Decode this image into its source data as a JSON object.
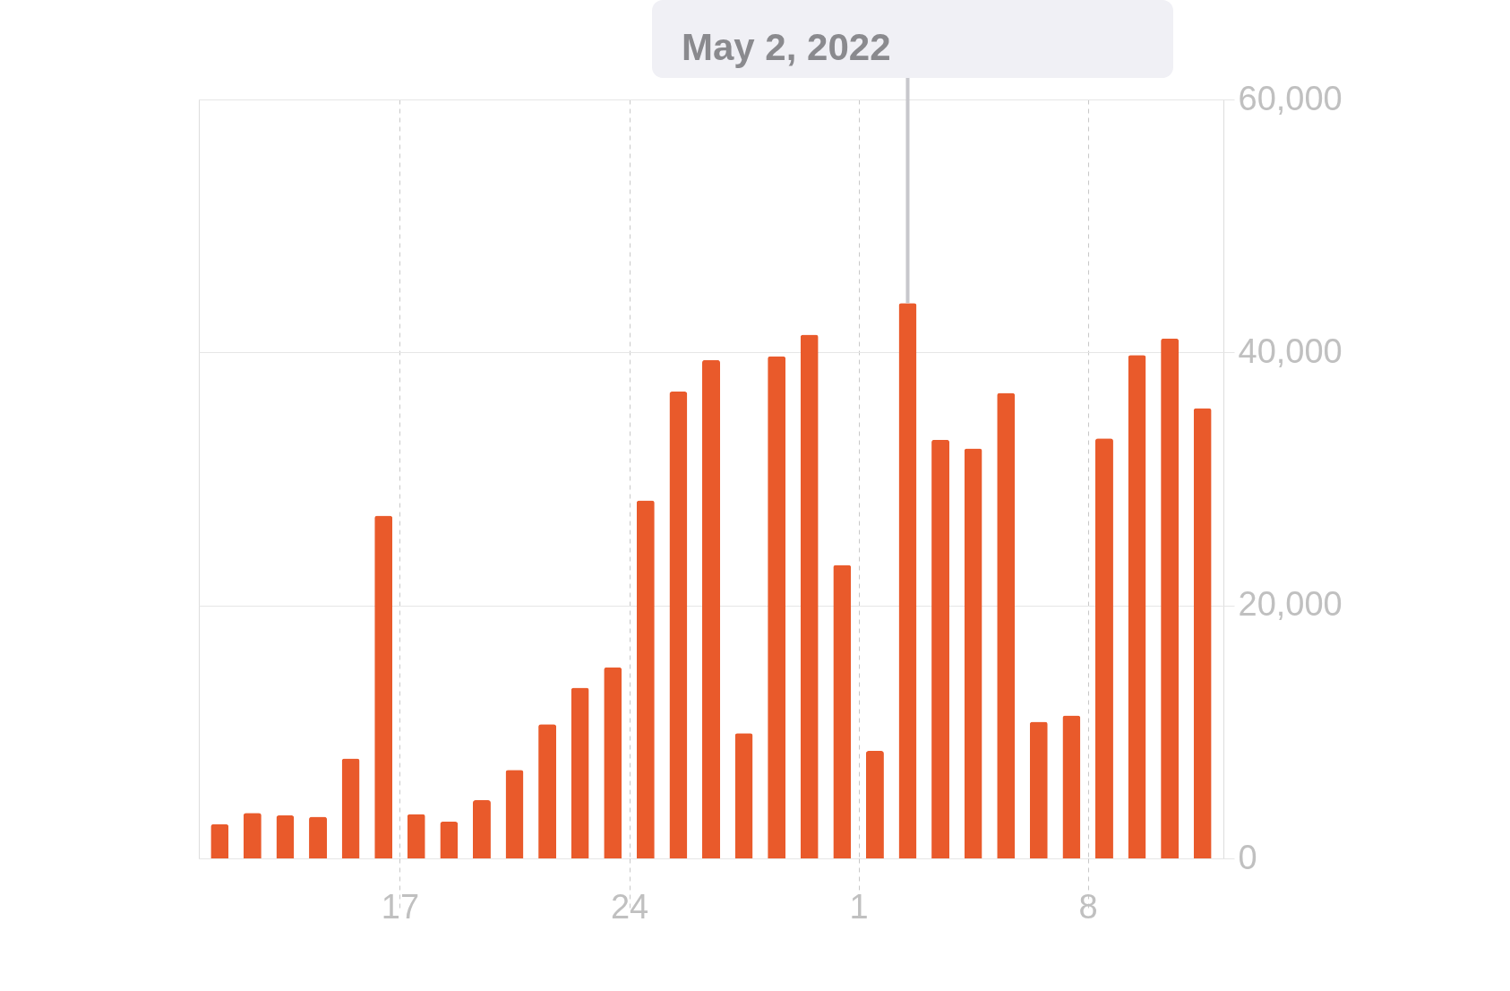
{
  "chart_data": {
    "type": "bar",
    "x": [
      "2022-04-11T12:00",
      "2022-04-12T12:00",
      "2022-04-13T12:00",
      "2022-04-14T12:00",
      "2022-04-15T12:00",
      "2022-04-16T12:00",
      "2022-04-17T12:00",
      "2022-04-18T12:00",
      "2022-04-19T12:00",
      "2022-04-20T12:00",
      "2022-04-21T12:00",
      "2022-04-22T12:00",
      "2022-04-23T12:00",
      "2022-04-24T12:00",
      "2022-04-25T12:00",
      "2022-04-26T12:00",
      "2022-04-27T12:00",
      "2022-04-28T12:00",
      "2022-04-29T12:00",
      "2022-04-30T12:00",
      "2022-05-01T12:00",
      "2022-05-02T12:00",
      "2022-05-03T12:00",
      "2022-05-04T12:00",
      "2022-05-05T12:00",
      "2022-05-06T12:00",
      "2022-05-07T12:00",
      "2022-05-08T12:00",
      "2022-05-09T12:00",
      "2022-05-10T12:00",
      "2022-05-11T12:00"
    ],
    "values": [
      2700,
      3600,
      3400,
      3300,
      7900,
      27100,
      3500,
      2900,
      4600,
      7000,
      10600,
      13500,
      15100,
      28300,
      36900,
      39400,
      9900,
      39700,
      41400,
      23200,
      8500,
      43900,
      33100,
      32400,
      36800,
      10800,
      11300,
      33200,
      39800,
      41100,
      35600
    ],
    "color": "#e95a2b",
    "xlim": [
      "2022-04-11",
      "2022-05-12"
    ],
    "xticks": [
      {
        "value": "2022-04-17",
        "label": "17"
      },
      {
        "value": "2022-04-24",
        "label": "24"
      },
      {
        "value": "2022-05-01",
        "label": "1"
      },
      {
        "value": "2022-05-08",
        "label": "8"
      }
    ],
    "ylim": [
      0,
      60000
    ],
    "yticks": [
      {
        "value": 0,
        "label": "0"
      },
      {
        "value": 20000,
        "label": "20,000"
      },
      {
        "value": 40000,
        "label": "40,000"
      },
      {
        "value": 60000,
        "label": "60,000"
      }
    ],
    "grid": true,
    "legend": false,
    "annotations": [
      {
        "text": "May 2, 2022",
        "x": "2022-05-02T12:00",
        "y": 43900
      }
    ]
  }
}
